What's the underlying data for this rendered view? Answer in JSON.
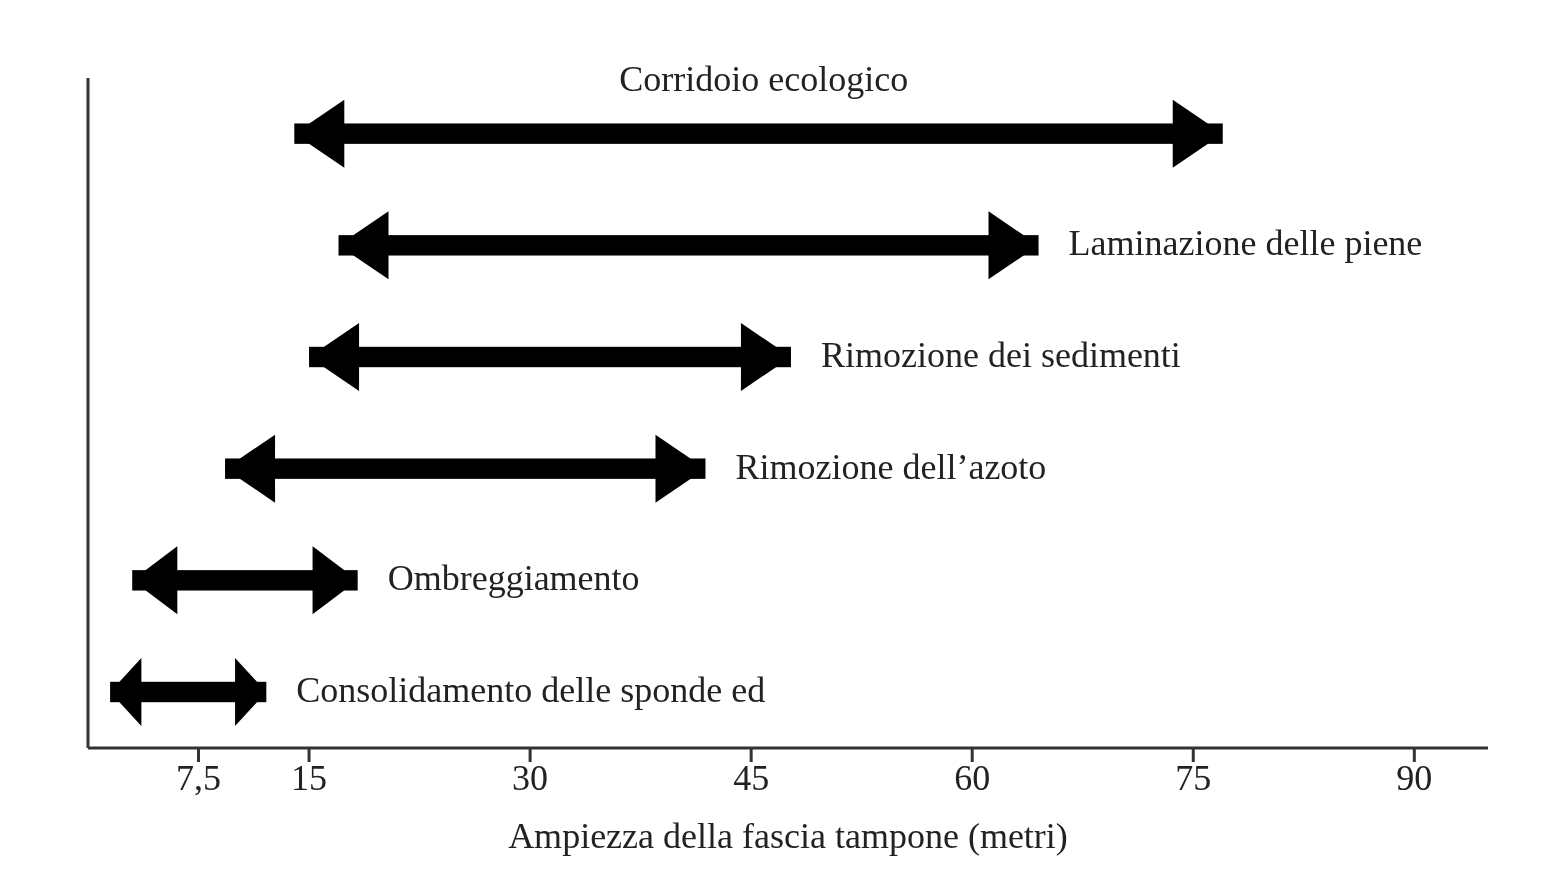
{
  "chart_data": {
    "type": "bar",
    "orientation": "horizontal",
    "xlabel": "Ampiezza della fascia tampone (metri)",
    "categories": [
      "Corridoio ecologico",
      "Laminazione delle piene",
      "Rimozione dei sedimenti",
      "Rimozione dell’azoto",
      "Ombreggiamento",
      "Consolidamento delle sponde ed"
    ],
    "base": [
      14,
      17,
      15,
      9.3,
      3,
      1.5
    ],
    "values": [
      63,
      47.5,
      32.7,
      32.6,
      15.3,
      10.6
    ],
    "color": "#000000",
    "xlim": [
      0,
      95
    ],
    "xticks": [
      {
        "value": 7.5,
        "label": "7,5"
      },
      15,
      30,
      45,
      60,
      75,
      90
    ],
    "tick_labels": "x",
    "grid": false
  }
}
